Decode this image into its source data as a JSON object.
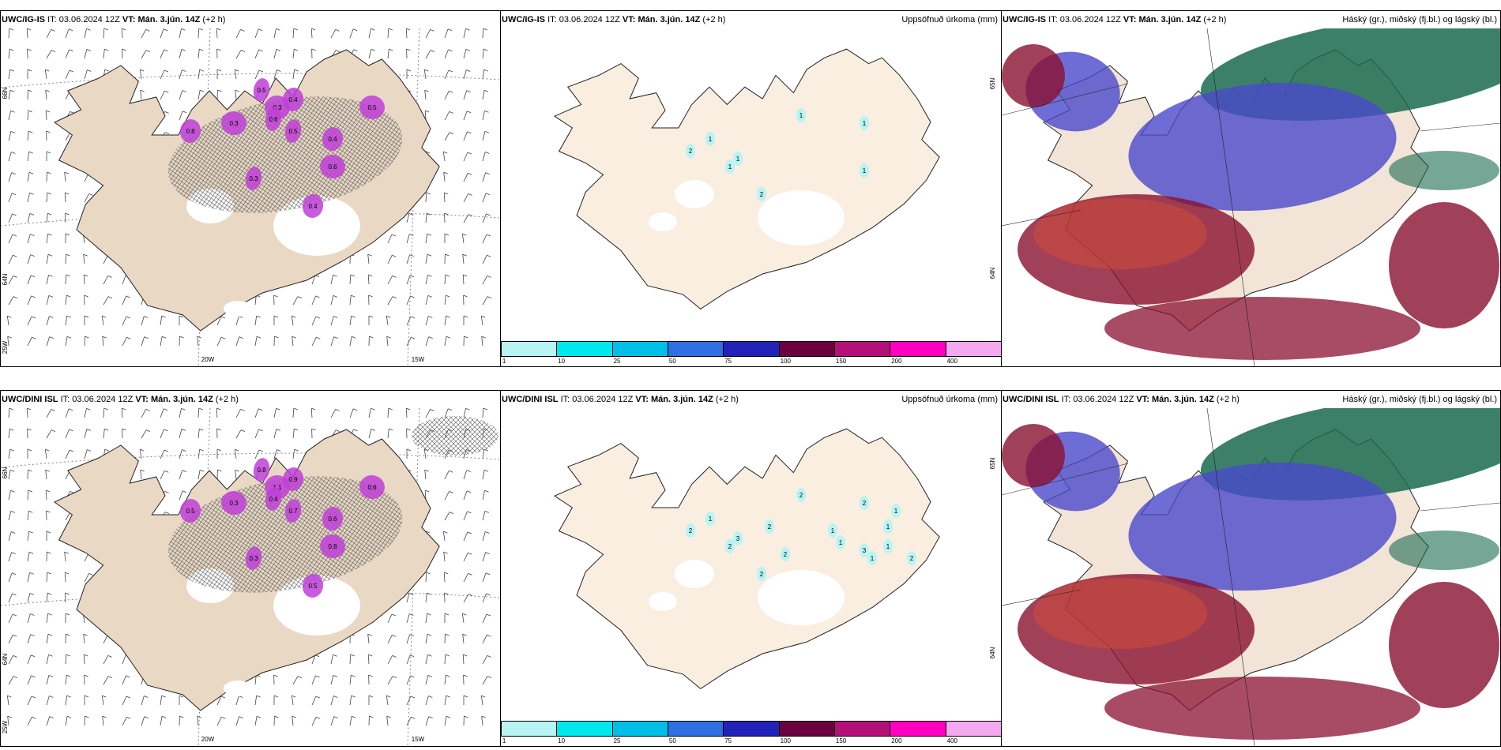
{
  "rows": [
    {
      "model": "UWC/IG-IS",
      "it_label": "IT:",
      "it_value": "03.06.2024 12Z",
      "vt_label": "VT:",
      "vt_value": "Mán. 3.jún. 14Z",
      "lead": "(+2 h)",
      "panel1": {
        "lat_labels": [
          "66N",
          "64N"
        ],
        "lon_labels": [
          "25W",
          "20W",
          "15W"
        ],
        "precip_labels": [
          "0.5",
          "0.4",
          "0.3",
          "0.6",
          "0.8",
          "0.3",
          "0.5",
          "0.4",
          "0.6",
          "0.3",
          "0.4",
          "0.5"
        ]
      },
      "panel2": {
        "title": "Uppsöfnuð úrkoma (mm)",
        "lat_labels": [
          "65N",
          "64N"
        ],
        "accum_labels": [
          "1",
          "2",
          "1",
          "1",
          "1",
          "1",
          "2",
          "1"
        ]
      },
      "panel3": {
        "title": "Háský (gr.), miðský (fj.bl.) og lágský (bl.)"
      }
    },
    {
      "model": "UWC/DINI ISL",
      "it_label": "IT:",
      "it_value": "03.06.2024 12Z",
      "vt_label": "VT:",
      "vt_value": "Mán. 3.jún. 14Z",
      "lead": "(+2 h)",
      "panel1": {
        "lat_labels": [
          "66N",
          "64N"
        ],
        "lon_labels": [
          "25W",
          "20W",
          "15W"
        ],
        "precip_labels": [
          "0.8",
          "0.9",
          "1.1",
          "0.4",
          "0.5",
          "0.3",
          "0.7",
          "0.6",
          "0.8",
          "0.3",
          "0.5",
          "0.6"
        ]
      },
      "panel2": {
        "title": "Uppsöfnuð úrkoma (mm)",
        "lat_labels": [
          "65N",
          "64N"
        ],
        "accum_labels": [
          "1",
          "2",
          "2",
          "2",
          "2",
          "3",
          "2",
          "3",
          "2",
          "2",
          "1",
          "1",
          "1",
          "1",
          "1",
          "2",
          "1"
        ]
      },
      "panel3": {
        "title": "Háský (gr.), miðský (fj.bl.) og lágský (bl.)"
      }
    }
  ],
  "colorbar": {
    "ticks": [
      "1",
      "10",
      "25",
      "50",
      "75",
      "100",
      "150",
      "200",
      "400"
    ],
    "colors": [
      "#b8f4f4",
      "#00e8ee",
      "#00bfe6",
      "#2f6fe0",
      "#2222b8",
      "#6a0040",
      "#b4107a",
      "#ff00c0",
      "#f4a8f0"
    ]
  },
  "colors": {
    "land": "#f9eee0",
    "land_p1": "#e8d8c4",
    "high_cloud": "#1a6a50",
    "mid_cloud": "#4a48cc",
    "low_cloud": "#8a1030",
    "precip_purple": "#c040d8"
  }
}
